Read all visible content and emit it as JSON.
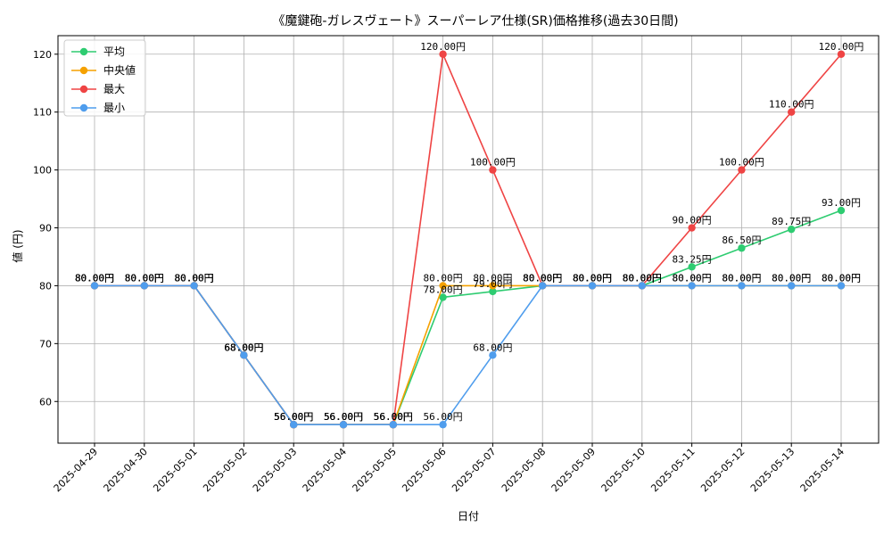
{
  "chart_data": {
    "type": "line",
    "title": "《魔鍵砲-ガレスヴェート》スーパーレア仕様(SR)価格推移(過去30日間)",
    "xlabel": "日付",
    "ylabel": "値 (円)",
    "ylim": [
      52.8,
      123.2
    ],
    "yticks": [
      60,
      70,
      80,
      90,
      100,
      110,
      120
    ],
    "grid": true,
    "legend_position": "top-left",
    "categories": [
      "2025-04-29",
      "2025-04-30",
      "2025-05-01",
      "2025-05-02",
      "2025-05-03",
      "2025-05-04",
      "2025-05-05",
      "2025-05-06",
      "2025-05-07",
      "2025-05-08",
      "2025-05-09",
      "2025-05-10",
      "2025-05-11",
      "2025-05-12",
      "2025-05-13",
      "2025-05-14"
    ],
    "series": [
      {
        "name": "平均",
        "color": "#2ecc71",
        "values": [
          80,
          80,
          80,
          68,
          56,
          56,
          56,
          78,
          79,
          80,
          80,
          80,
          83.25,
          86.5,
          89.75,
          93
        ],
        "labels": [
          "80.00円",
          "80.00円",
          "80.00円",
          "68.00円",
          "56.00円",
          "56.00円",
          "56.00円",
          "78.00円",
          "79.00円",
          "80.00円",
          "80.00円",
          "80.00円",
          "83.25円",
          "86.50円",
          "89.75円",
          "93.00円"
        ]
      },
      {
        "name": "中央値",
        "color": "#f5a100",
        "values": [
          80,
          80,
          80,
          68,
          56,
          56,
          56,
          80,
          80,
          80,
          80,
          80,
          80,
          80,
          80,
          80
        ],
        "labels": [
          "80.00円",
          "80.00円",
          "80.00円",
          "68.00円",
          "56.00円",
          "56.00円",
          "56.00円",
          "80.00円",
          "80.00円",
          "80.00円",
          "80.00円",
          "80.00円",
          "80.00円",
          "80.00円",
          "80.00円",
          "80.00円"
        ]
      },
      {
        "name": "最大",
        "color": "#ef4444",
        "values": [
          80,
          80,
          80,
          68,
          56,
          56,
          56,
          120,
          100,
          80,
          80,
          80,
          90,
          100,
          110,
          120
        ],
        "labels": [
          "80.00円",
          "80.00円",
          "80.00円",
          "68.00円",
          "56.00円",
          "56.00円",
          "56.00円",
          "120.00円",
          "100.00円",
          "80.00円",
          "80.00円",
          "80.00円",
          "90.00円",
          "100.00円",
          "110.00円",
          "120.00円"
        ]
      },
      {
        "name": "最小",
        "color": "#4f9ded",
        "values": [
          80,
          80,
          80,
          68,
          56,
          56,
          56,
          56,
          68,
          80,
          80,
          80,
          80,
          80,
          80,
          80
        ],
        "labels": [
          "80.00円",
          "80.00円",
          "80.00円",
          "68.00円",
          "56.00円",
          "56.00円",
          "56.00円",
          "56.00円",
          "68.00円",
          "80.00円",
          "80.00円",
          "80.00円",
          "80.00円",
          "80.00円",
          "80.00円",
          "80.00円"
        ]
      }
    ]
  }
}
